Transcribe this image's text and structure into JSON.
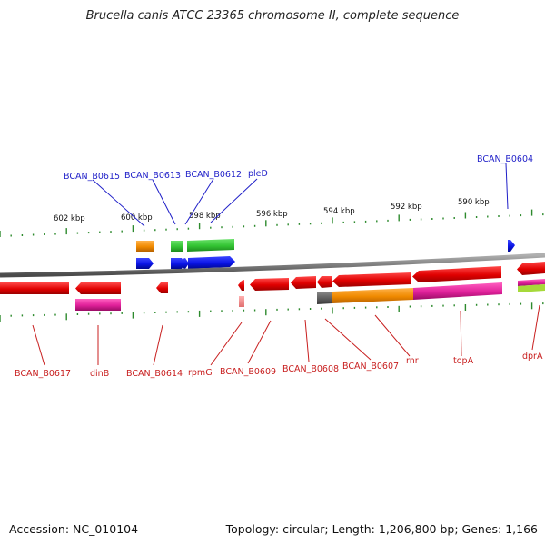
{
  "title": "Brucella canis ATCC 23365 chromosome II, complete sequence",
  "footer": {
    "accession": "Accession: NC_010104",
    "summary": "Topology: circular; Length: 1,206,800 bp; Genes: 1,166"
  },
  "scale": {
    "unit": "kbp",
    "labels": [
      "602 kbp",
      "600 kbp",
      "598 kbp",
      "596 kbp",
      "594 kbp",
      "592 kbp",
      "590 kbp"
    ]
  },
  "genes_top": [
    "BCAN_B0615",
    "BCAN_B0613",
    "BCAN_B0612",
    "pleD",
    "BCAN_B0604"
  ],
  "genes_bottom": [
    "BCAN_B0617",
    "dinB",
    "BCAN_B0614",
    "rpmG",
    "BCAN_B0609",
    "BCAN_B0608",
    "BCAN_B0607",
    "rnr",
    "topA",
    "dprA"
  ],
  "colors": {
    "backbone": "#7d7d7d",
    "reverse_gene": "#e00000",
    "forward_gene": "#0a14e6",
    "cog_green": "#33c433",
    "cog_orange": "#f08a00",
    "cog_magenta": "#e0209a",
    "cog_gray": "#555555",
    "tick": "#2d8a2d",
    "label_top": "#1f1fc8",
    "label_bottom": "#c81f1f"
  }
}
